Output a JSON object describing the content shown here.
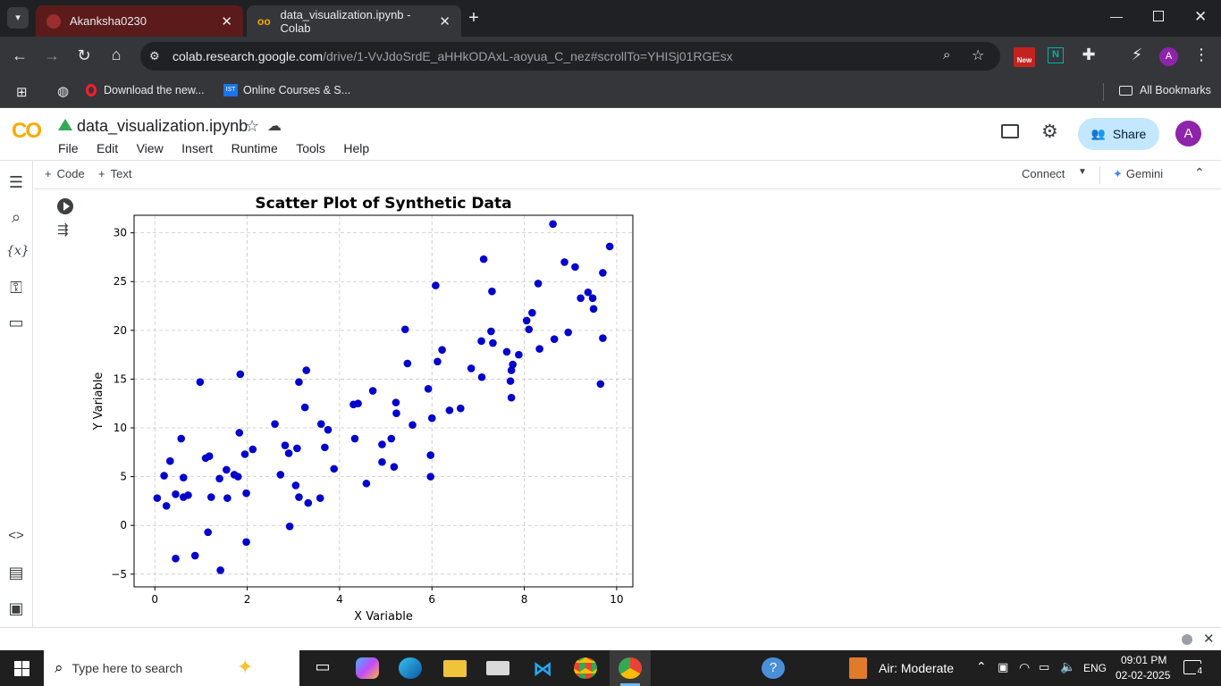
{
  "browser": {
    "tabs": [
      {
        "title": "Akanksha0230",
        "active": false
      },
      {
        "title": "data_visualization.ipynb - Colab",
        "active": true
      }
    ],
    "url_host": "colab.research.google.com",
    "url_rest": "/drive/1-VvJdoSrdE_aHHkODAxL-aoyua_C_nez#scrollTo=YHISj01RGEsx",
    "bookmarks": [
      "Download the new...",
      "Online Courses & S..."
    ],
    "all_bookmarks": "All Bookmarks",
    "new_badge": "New",
    "profile_initial": "A"
  },
  "colab": {
    "logo": "CO",
    "notebook_title": "data_visualization.ipynb",
    "menu": [
      "File",
      "Edit",
      "View",
      "Insert",
      "Runtime",
      "Tools",
      "Help"
    ],
    "share_label": "Share",
    "avatar_initial": "A",
    "add_code": "Code",
    "add_text": "Text",
    "connect_label": "Connect",
    "gemini_label": "Gemini",
    "accent": "#f9ab00"
  },
  "chart_data": {
    "type": "scatter",
    "title": "Scatter Plot of Synthetic Data",
    "xlabel": "X Variable",
    "ylabel": "Y Variable",
    "xlim": [
      -0.45,
      10.35
    ],
    "ylim": [
      -6.3,
      31.8
    ],
    "xticks": [
      0,
      2,
      4,
      6,
      8,
      10
    ],
    "yticks": [
      -5,
      0,
      5,
      10,
      15,
      20,
      25,
      30
    ],
    "grid": true,
    "color": "#0000cd",
    "points": [
      [
        0.05,
        2.8
      ],
      [
        0.2,
        5.1
      ],
      [
        0.25,
        2.0
      ],
      [
        0.33,
        6.6
      ],
      [
        0.45,
        3.2
      ],
      [
        0.45,
        -3.4
      ],
      [
        0.57,
        8.9
      ],
      [
        0.62,
        4.9
      ],
      [
        0.62,
        2.9
      ],
      [
        0.72,
        3.1
      ],
      [
        0.87,
        -3.1
      ],
      [
        0.98,
        14.7
      ],
      [
        1.1,
        6.9
      ],
      [
        1.15,
        -0.7
      ],
      [
        1.18,
        7.1
      ],
      [
        1.22,
        2.9
      ],
      [
        1.4,
        4.8
      ],
      [
        1.42,
        -4.6
      ],
      [
        1.55,
        5.7
      ],
      [
        1.57,
        2.8
      ],
      [
        1.72,
        5.2
      ],
      [
        1.8,
        5.0
      ],
      [
        1.83,
        9.5
      ],
      [
        1.85,
        15.5
      ],
      [
        1.95,
        7.3
      ],
      [
        1.98,
        3.3
      ],
      [
        1.98,
        -1.7
      ],
      [
        2.12,
        7.8
      ],
      [
        2.6,
        10.4
      ],
      [
        2.72,
        5.2
      ],
      [
        2.82,
        8.2
      ],
      [
        2.9,
        7.4
      ],
      [
        2.92,
        -0.1
      ],
      [
        3.05,
        4.1
      ],
      [
        3.08,
        7.9
      ],
      [
        3.12,
        14.7
      ],
      [
        3.12,
        2.9
      ],
      [
        3.25,
        12.1
      ],
      [
        3.28,
        15.9
      ],
      [
        3.32,
        2.3
      ],
      [
        3.58,
        2.8
      ],
      [
        3.6,
        10.4
      ],
      [
        3.68,
        8.0
      ],
      [
        3.75,
        9.8
      ],
      [
        3.88,
        5.8
      ],
      [
        4.3,
        12.4
      ],
      [
        4.33,
        8.9
      ],
      [
        4.4,
        12.5
      ],
      [
        4.58,
        4.3
      ],
      [
        4.72,
        13.8
      ],
      [
        4.92,
        8.3
      ],
      [
        4.92,
        6.5
      ],
      [
        5.12,
        8.9
      ],
      [
        5.18,
        6.0
      ],
      [
        5.22,
        12.6
      ],
      [
        5.23,
        11.5
      ],
      [
        5.42,
        20.1
      ],
      [
        5.47,
        16.6
      ],
      [
        5.58,
        10.3
      ],
      [
        5.92,
        14.0
      ],
      [
        5.97,
        7.2
      ],
      [
        5.97,
        5.0
      ],
      [
        6.0,
        11.0
      ],
      [
        6.08,
        24.6
      ],
      [
        6.12,
        16.8
      ],
      [
        6.22,
        18.0
      ],
      [
        6.38,
        11.8
      ],
      [
        6.62,
        12.0
      ],
      [
        6.85,
        16.1
      ],
      [
        7.07,
        18.9
      ],
      [
        7.08,
        15.2
      ],
      [
        7.12,
        27.3
      ],
      [
        7.28,
        19.9
      ],
      [
        7.3,
        24.0
      ],
      [
        7.32,
        18.7
      ],
      [
        7.62,
        17.8
      ],
      [
        7.7,
        14.8
      ],
      [
        7.72,
        15.9
      ],
      [
        7.72,
        13.1
      ],
      [
        7.75,
        16.5
      ],
      [
        7.88,
        17.5
      ],
      [
        8.05,
        21.0
      ],
      [
        8.1,
        20.1
      ],
      [
        8.17,
        21.8
      ],
      [
        8.3,
        24.8
      ],
      [
        8.33,
        18.1
      ],
      [
        8.62,
        30.9
      ],
      [
        8.65,
        19.1
      ],
      [
        8.87,
        27.0
      ],
      [
        8.95,
        19.8
      ],
      [
        9.1,
        26.5
      ],
      [
        9.22,
        23.3
      ],
      [
        9.38,
        23.9
      ],
      [
        9.48,
        23.3
      ],
      [
        9.5,
        22.2
      ],
      [
        9.65,
        14.5
      ],
      [
        9.7,
        25.9
      ],
      [
        9.7,
        19.2
      ],
      [
        9.85,
        28.6
      ]
    ]
  },
  "taskbar": {
    "search_placeholder": "Type here to search",
    "weather": "Air: Moderate",
    "language": "ENG",
    "time": "09:01 PM",
    "date": "02-02-2025",
    "notifications": "4"
  }
}
